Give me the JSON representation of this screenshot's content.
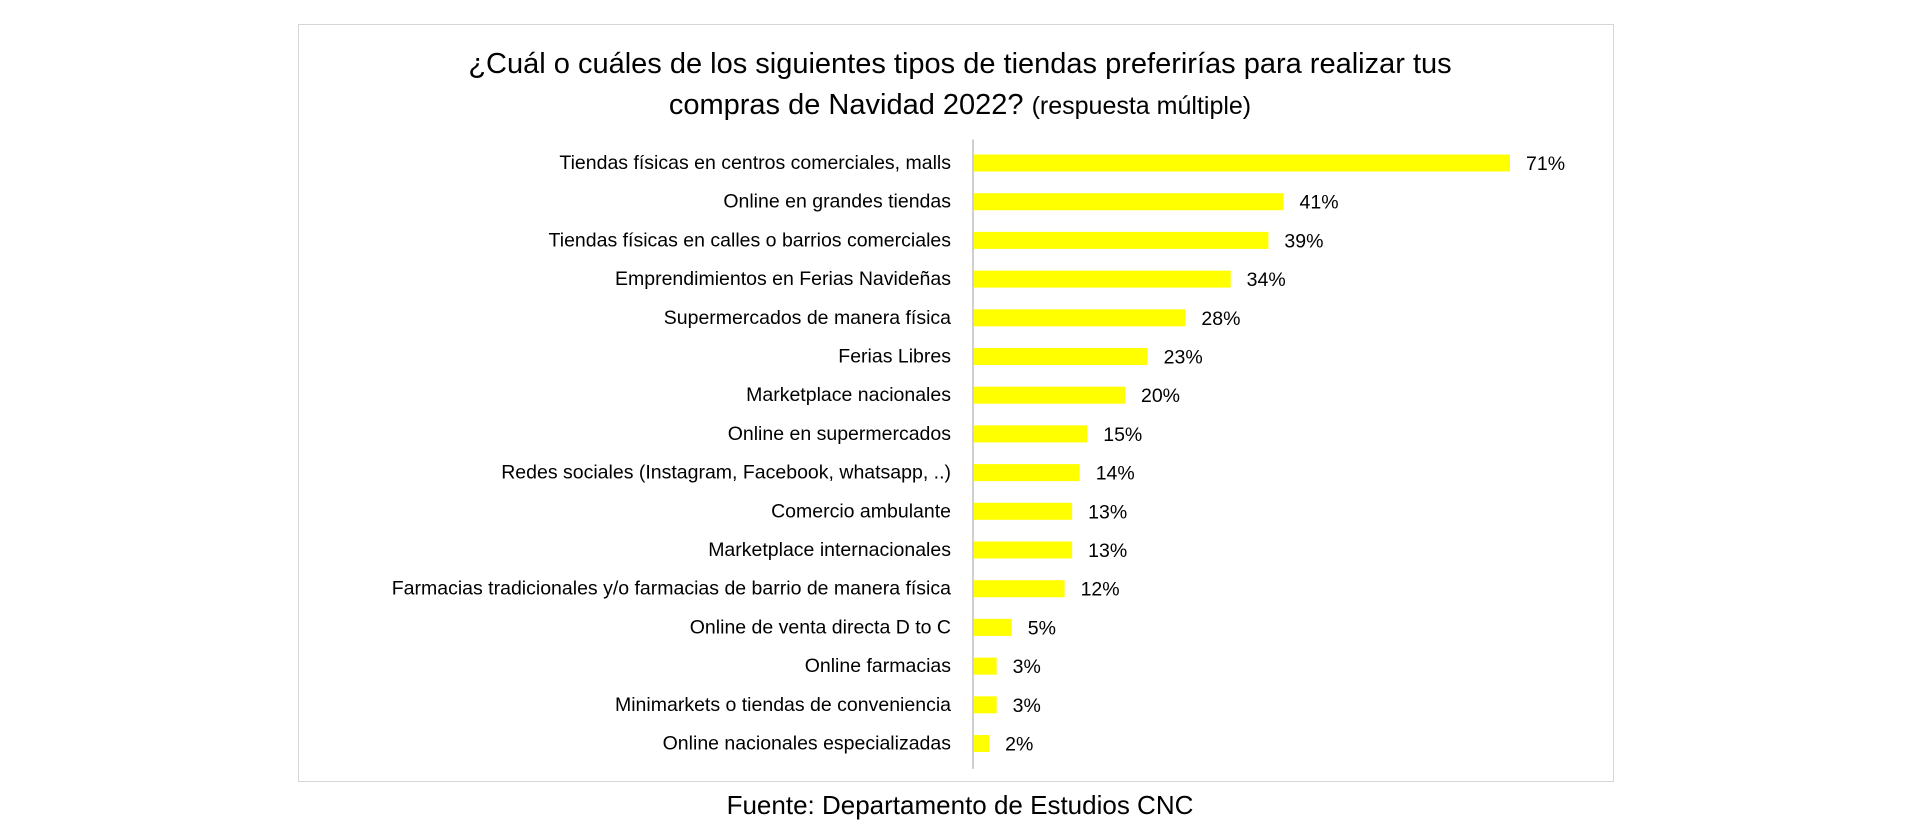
{
  "chart_data": {
    "type": "bar",
    "orientation": "horizontal",
    "title_line1": "¿Cuál o cuáles de los siguientes tipos de tiendas preferirías para realizar tus",
    "title_line2": "compras de Navidad 2022?",
    "subtitle": "(respuesta múltiple)",
    "categories": [
      "Tiendas físicas en centros comerciales, malls",
      "Online en grandes tiendas",
      "Tiendas físicas en calles o barrios comerciales",
      "Emprendimientos en Ferias Navideñas",
      "Supermercados de manera física",
      "Ferias Libres",
      "Marketplace nacionales",
      "Online en supermercados",
      "Redes sociales (Instagram, Facebook, whatsapp, ..)",
      "Comercio ambulante",
      "Marketplace internacionales",
      "Farmacias tradicionales y/o farmacias de barrio de manera física",
      "Online de venta directa D to C",
      "Online farmacias",
      "Minimarkets o tiendas de conveniencia",
      "Online nacionales especializadas"
    ],
    "values": [
      71,
      41,
      39,
      34,
      28,
      23,
      20,
      15,
      14,
      13,
      13,
      12,
      5,
      3,
      3,
      2
    ],
    "value_labels": [
      "71%",
      "41%",
      "39%",
      "34%",
      "28%",
      "23%",
      "20%",
      "15%",
      "14%",
      "13%",
      "13%",
      "12%",
      "5%",
      "3%",
      "3%",
      "2%"
    ],
    "unit": "%",
    "xlim": [
      0,
      75
    ],
    "grid": false,
    "legend": "none",
    "bar_color": "#ffff00",
    "axis_color": "#bfbfbf"
  },
  "source": "Fuente: Departamento de Estudios CNC"
}
